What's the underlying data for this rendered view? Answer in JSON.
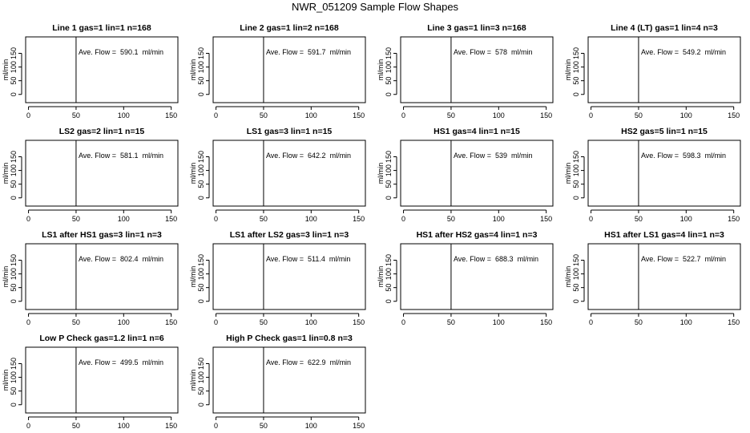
{
  "title": "NWR_051209  Sample Flow Shapes",
  "chart_data": [
    {
      "type": "line",
      "title": "Line 1 gas=1 lin=1 n=168",
      "ylabel": "ml/min",
      "annotation": "Ave. Flow =  590.1  ml/min",
      "xticks": [
        "0",
        "50",
        "100",
        "150"
      ],
      "yticks": [
        "0",
        "50",
        "100",
        "150"
      ],
      "xlim": [
        -3,
        157
      ],
      "ylim": [
        -30,
        210
      ],
      "vline_x": 50
    },
    {
      "type": "line",
      "title": "Line 2 gas=1 lin=2 n=168",
      "ylabel": "ml/min",
      "annotation": "Ave. Flow =  591.7  ml/min",
      "xticks": [
        "0",
        "50",
        "100",
        "150"
      ],
      "yticks": [
        "0",
        "50",
        "100",
        "150"
      ],
      "xlim": [
        -3,
        157
      ],
      "ylim": [
        -30,
        210
      ],
      "vline_x": 50
    },
    {
      "type": "line",
      "title": "Line 3 gas=1 lin=3 n=168",
      "ylabel": "ml/min",
      "annotation": "Ave. Flow =  578  ml/min",
      "xticks": [
        "0",
        "50",
        "100",
        "150"
      ],
      "yticks": [
        "0",
        "50",
        "100",
        "150"
      ],
      "xlim": [
        -3,
        157
      ],
      "ylim": [
        -30,
        210
      ],
      "vline_x": 50
    },
    {
      "type": "line",
      "title": "Line 4 (LT) gas=1 lin=4 n=3",
      "ylabel": "ml/min",
      "annotation": "Ave. Flow =  549.2  ml/min",
      "xticks": [
        "0",
        "50",
        "100",
        "150"
      ],
      "yticks": [
        "0",
        "50",
        "100",
        "150"
      ],
      "xlim": [
        -3,
        157
      ],
      "ylim": [
        -30,
        210
      ],
      "vline_x": 50
    },
    {
      "type": "line",
      "title": "LS2 gas=2 lin=1 n=15",
      "ylabel": "ml/min",
      "annotation": "Ave. Flow =  581.1  ml/min",
      "xticks": [
        "0",
        "50",
        "100",
        "150"
      ],
      "yticks": [
        "0",
        "50",
        "100",
        "150"
      ],
      "xlim": [
        -3,
        157
      ],
      "ylim": [
        -30,
        210
      ],
      "vline_x": 50
    },
    {
      "type": "line",
      "title": "LS1 gas=3 lin=1 n=15",
      "ylabel": "ml/min",
      "annotation": "Ave. Flow =  642.2  ml/min",
      "xticks": [
        "0",
        "50",
        "100",
        "150"
      ],
      "yticks": [
        "0",
        "50",
        "100",
        "150"
      ],
      "xlim": [
        -3,
        157
      ],
      "ylim": [
        -30,
        210
      ],
      "vline_x": 50
    },
    {
      "type": "line",
      "title": "HS1 gas=4 lin=1 n=15",
      "ylabel": "ml/min",
      "annotation": "Ave. Flow =  539  ml/min",
      "xticks": [
        "0",
        "50",
        "100",
        "150"
      ],
      "yticks": [
        "0",
        "50",
        "100",
        "150"
      ],
      "xlim": [
        -3,
        157
      ],
      "ylim": [
        -30,
        210
      ],
      "vline_x": 50
    },
    {
      "type": "line",
      "title": "HS2 gas=5 lin=1 n=15",
      "ylabel": "ml/min",
      "annotation": "Ave. Flow =  598.3  ml/min",
      "xticks": [
        "0",
        "50",
        "100",
        "150"
      ],
      "yticks": [
        "0",
        "50",
        "100",
        "150"
      ],
      "xlim": [
        -3,
        157
      ],
      "ylim": [
        -30,
        210
      ],
      "vline_x": 50
    },
    {
      "type": "line",
      "title": "LS1 after HS1 gas=3 lin=1 n=3",
      "ylabel": "ml/min",
      "annotation": "Ave. Flow =  802.4  ml/min",
      "xticks": [
        "0",
        "50",
        "100",
        "150"
      ],
      "yticks": [
        "0",
        "50",
        "100",
        "150"
      ],
      "xlim": [
        -3,
        157
      ],
      "ylim": [
        -30,
        210
      ],
      "vline_x": 50
    },
    {
      "type": "line",
      "title": "LS1 after LS2 gas=3 lin=1 n=3",
      "ylabel": "ml/min",
      "annotation": "Ave. Flow =  511.4  ml/min",
      "xticks": [
        "0",
        "50",
        "100",
        "150"
      ],
      "yticks": [
        "0",
        "50",
        "100",
        "150"
      ],
      "xlim": [
        -3,
        157
      ],
      "ylim": [
        -30,
        210
      ],
      "vline_x": 50
    },
    {
      "type": "line",
      "title": "HS1 after HS2 gas=4 lin=1 n=3",
      "ylabel": "ml/min",
      "annotation": "Ave. Flow =  688.3  ml/min",
      "xticks": [
        "0",
        "50",
        "100",
        "150"
      ],
      "yticks": [
        "0",
        "50",
        "100",
        "150"
      ],
      "xlim": [
        -3,
        157
      ],
      "ylim": [
        -30,
        210
      ],
      "vline_x": 50
    },
    {
      "type": "line",
      "title": "HS1 after LS1 gas=4 lin=1 n=3",
      "ylabel": "ml/min",
      "annotation": "Ave. Flow =  522.7  ml/min",
      "xticks": [
        "0",
        "50",
        "100",
        "150"
      ],
      "yticks": [
        "0",
        "50",
        "100",
        "150"
      ],
      "xlim": [
        -3,
        157
      ],
      "ylim": [
        -30,
        210
      ],
      "vline_x": 50
    },
    {
      "type": "line",
      "title": "Low P Check gas=1.2 lin=1 n=6",
      "ylabel": "ml/min",
      "annotation": "Ave. Flow =  499.5  ml/min",
      "xticks": [
        "0",
        "50",
        "100",
        "150"
      ],
      "yticks": [
        "0",
        "50",
        "100",
        "150"
      ],
      "xlim": [
        -3,
        157
      ],
      "ylim": [
        -30,
        210
      ],
      "vline_x": 50
    },
    {
      "type": "line",
      "title": "High P Check gas=1 lin=0.8 n=3",
      "ylabel": "ml/min",
      "annotation": "Ave. Flow =  622.9  ml/min",
      "xticks": [
        "0",
        "50",
        "100",
        "150"
      ],
      "yticks": [
        "0",
        "50",
        "100",
        "150"
      ],
      "xlim": [
        -3,
        157
      ],
      "ylim": [
        -30,
        210
      ],
      "vline_x": 50
    }
  ]
}
